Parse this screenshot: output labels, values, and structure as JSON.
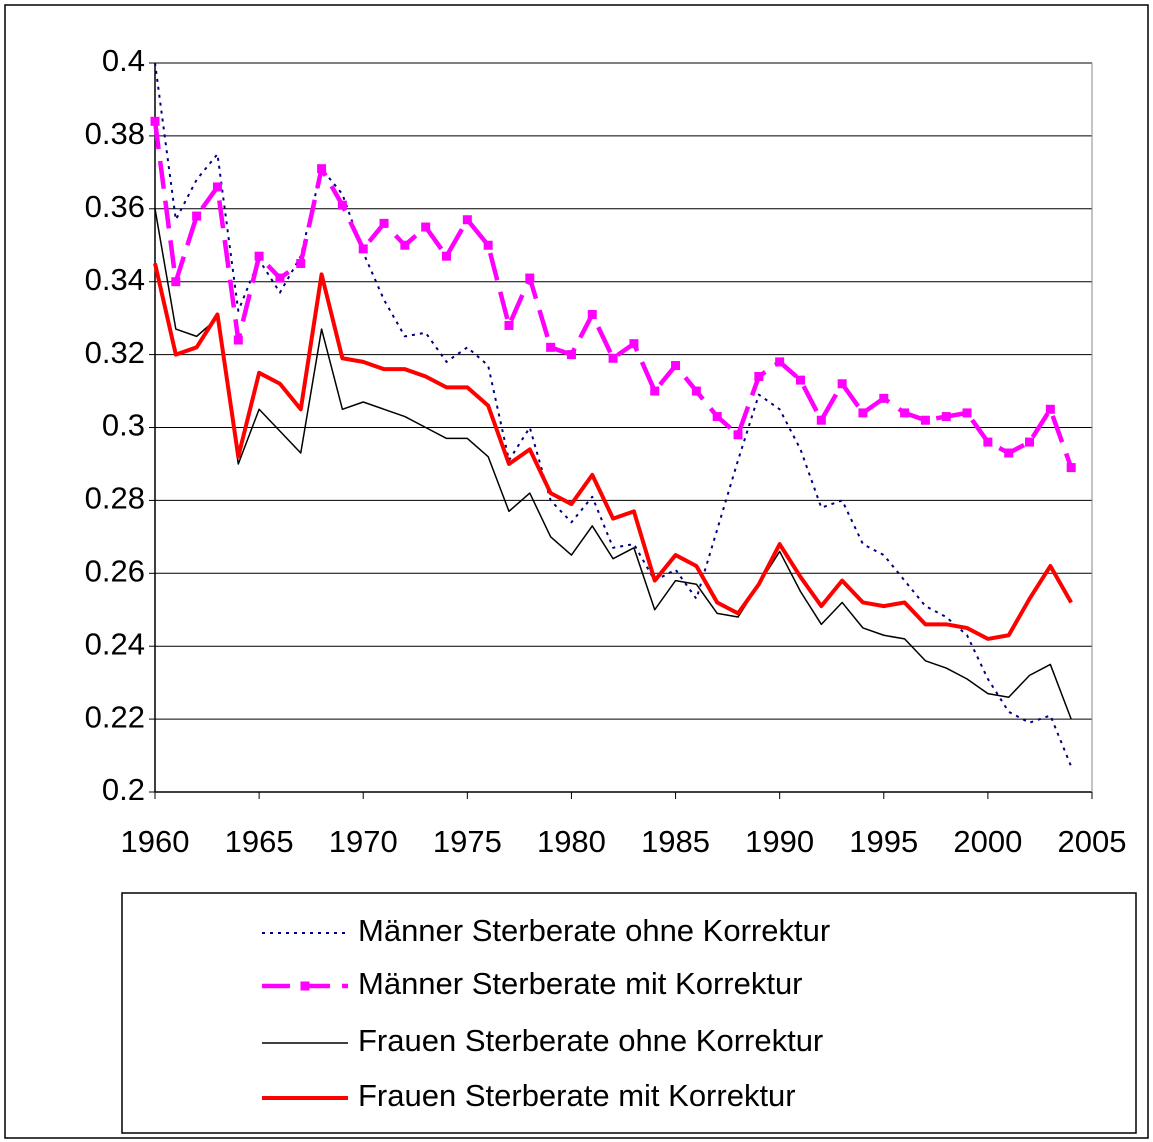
{
  "chart_data": {
    "type": "line",
    "x": [
      1960,
      1961,
      1962,
      1963,
      1964,
      1965,
      1966,
      1967,
      1968,
      1969,
      1970,
      1971,
      1972,
      1973,
      1974,
      1975,
      1976,
      1977,
      1978,
      1979,
      1980,
      1981,
      1982,
      1983,
      1984,
      1985,
      1986,
      1987,
      1988,
      1989,
      1990,
      1991,
      1992,
      1993,
      1994,
      1995,
      1996,
      1997,
      1998,
      1999,
      2000,
      2001,
      2002,
      2003,
      2004
    ],
    "series": [
      {
        "name": "Männer Sterberate ohne Korrektur",
        "color": "#000080",
        "style": "dotted",
        "marker": "none",
        "values": [
          0.4,
          0.357,
          0.368,
          0.375,
          0.332,
          0.346,
          0.337,
          0.347,
          0.371,
          0.364,
          0.348,
          0.335,
          0.325,
          0.326,
          0.318,
          0.322,
          0.317,
          0.291,
          0.3,
          0.28,
          0.274,
          0.281,
          0.267,
          0.268,
          0.258,
          0.261,
          0.253,
          0.272,
          0.291,
          0.309,
          0.305,
          0.294,
          0.278,
          0.28,
          0.268,
          0.265,
          0.258,
          0.251,
          0.248,
          0.243,
          0.231,
          0.222,
          0.219,
          0.221,
          0.207
        ]
      },
      {
        "name": "Männer Sterberate mit Korrektur",
        "color": "#ff00ff",
        "style": "dashed",
        "marker": "square",
        "values": [
          0.384,
          0.34,
          0.358,
          0.366,
          0.324,
          0.347,
          0.341,
          0.345,
          0.371,
          0.361,
          0.349,
          0.356,
          0.35,
          0.355,
          0.347,
          0.357,
          0.35,
          0.328,
          0.341,
          0.322,
          0.32,
          0.331,
          0.319,
          0.323,
          0.31,
          0.317,
          0.31,
          0.303,
          0.298,
          0.314,
          0.318,
          0.313,
          0.302,
          0.312,
          0.304,
          0.308,
          0.304,
          0.302,
          0.303,
          0.304,
          0.296,
          0.293,
          0.296,
          0.305,
          0.289
        ]
      },
      {
        "name": "Frauen Sterberate ohne Korrektur",
        "color": "#000000",
        "style": "thin",
        "marker": "none",
        "values": [
          0.36,
          0.327,
          0.325,
          0.33,
          0.29,
          0.305,
          0.299,
          0.293,
          0.327,
          0.305,
          0.307,
          0.305,
          0.303,
          0.3,
          0.297,
          0.297,
          0.292,
          0.277,
          0.282,
          0.27,
          0.265,
          0.273,
          0.264,
          0.267,
          0.25,
          0.258,
          0.257,
          0.249,
          0.248,
          0.257,
          0.266,
          0.255,
          0.246,
          0.252,
          0.245,
          0.243,
          0.242,
          0.236,
          0.234,
          0.231,
          0.227,
          0.226,
          0.232,
          0.235,
          0.22
        ]
      },
      {
        "name": "Frauen Sterberate mit Korrektur",
        "color": "#ff0000",
        "style": "thick",
        "marker": "none",
        "values": [
          0.345,
          0.32,
          0.322,
          0.331,
          0.292,
          0.315,
          0.312,
          0.305,
          0.342,
          0.319,
          0.318,
          0.316,
          0.316,
          0.314,
          0.311,
          0.311,
          0.306,
          0.29,
          0.294,
          0.282,
          0.279,
          0.287,
          0.275,
          0.277,
          0.258,
          0.265,
          0.262,
          0.252,
          0.249,
          0.257,
          0.268,
          0.259,
          0.251,
          0.258,
          0.252,
          0.251,
          0.252,
          0.246,
          0.246,
          0.245,
          0.242,
          0.243,
          0.253,
          0.262,
          0.252
        ]
      }
    ],
    "xlim": [
      1960,
      2005
    ],
    "xticks": [
      1960,
      1965,
      1970,
      1975,
      1980,
      1985,
      1990,
      1995,
      2000,
      2005
    ],
    "ylim": [
      0.2,
      0.4
    ],
    "yticks": [
      0.2,
      0.22,
      0.24,
      0.26,
      0.28,
      0.3,
      0.32,
      0.34,
      0.36,
      0.38,
      0.4
    ],
    "grid": true,
    "legend": "bottom"
  }
}
